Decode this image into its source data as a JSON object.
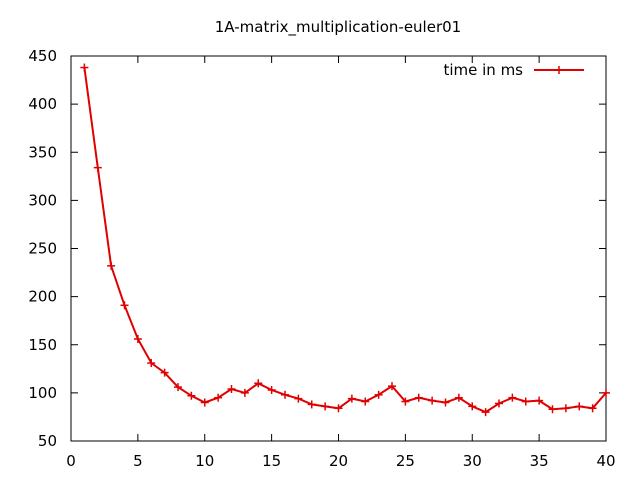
{
  "chart_data": {
    "type": "line",
    "title": "1A-matrix_multiplication-euler01",
    "xlabel": "",
    "ylabel": "",
    "xlim": [
      0,
      40
    ],
    "ylim": [
      50,
      450
    ],
    "xticks": [
      0,
      5,
      10,
      15,
      20,
      25,
      30,
      35,
      40
    ],
    "yticks": [
      50,
      100,
      150,
      200,
      250,
      300,
      350,
      400,
      450
    ],
    "grid": false,
    "legend_position": "top-right",
    "series": [
      {
        "name": "time in ms",
        "color": "#e00000",
        "marker": "plus",
        "x": [
          1,
          2,
          3,
          4,
          5,
          6,
          7,
          8,
          9,
          10,
          11,
          12,
          13,
          14,
          15,
          16,
          17,
          18,
          19,
          20,
          21,
          22,
          23,
          24,
          25,
          26,
          27,
          28,
          29,
          30,
          31,
          32,
          33,
          34,
          35,
          36,
          37,
          38,
          39,
          40
        ],
        "y": [
          438,
          334,
          232,
          191,
          156,
          131,
          121,
          106,
          97,
          90,
          95,
          104,
          100,
          110,
          103,
          98,
          94,
          88,
          86,
          84,
          94,
          91,
          98,
          107,
          91,
          95,
          92,
          90,
          95,
          86,
          80,
          89,
          95,
          91,
          92,
          83,
          84,
          86,
          84,
          100
        ]
      }
    ]
  }
}
